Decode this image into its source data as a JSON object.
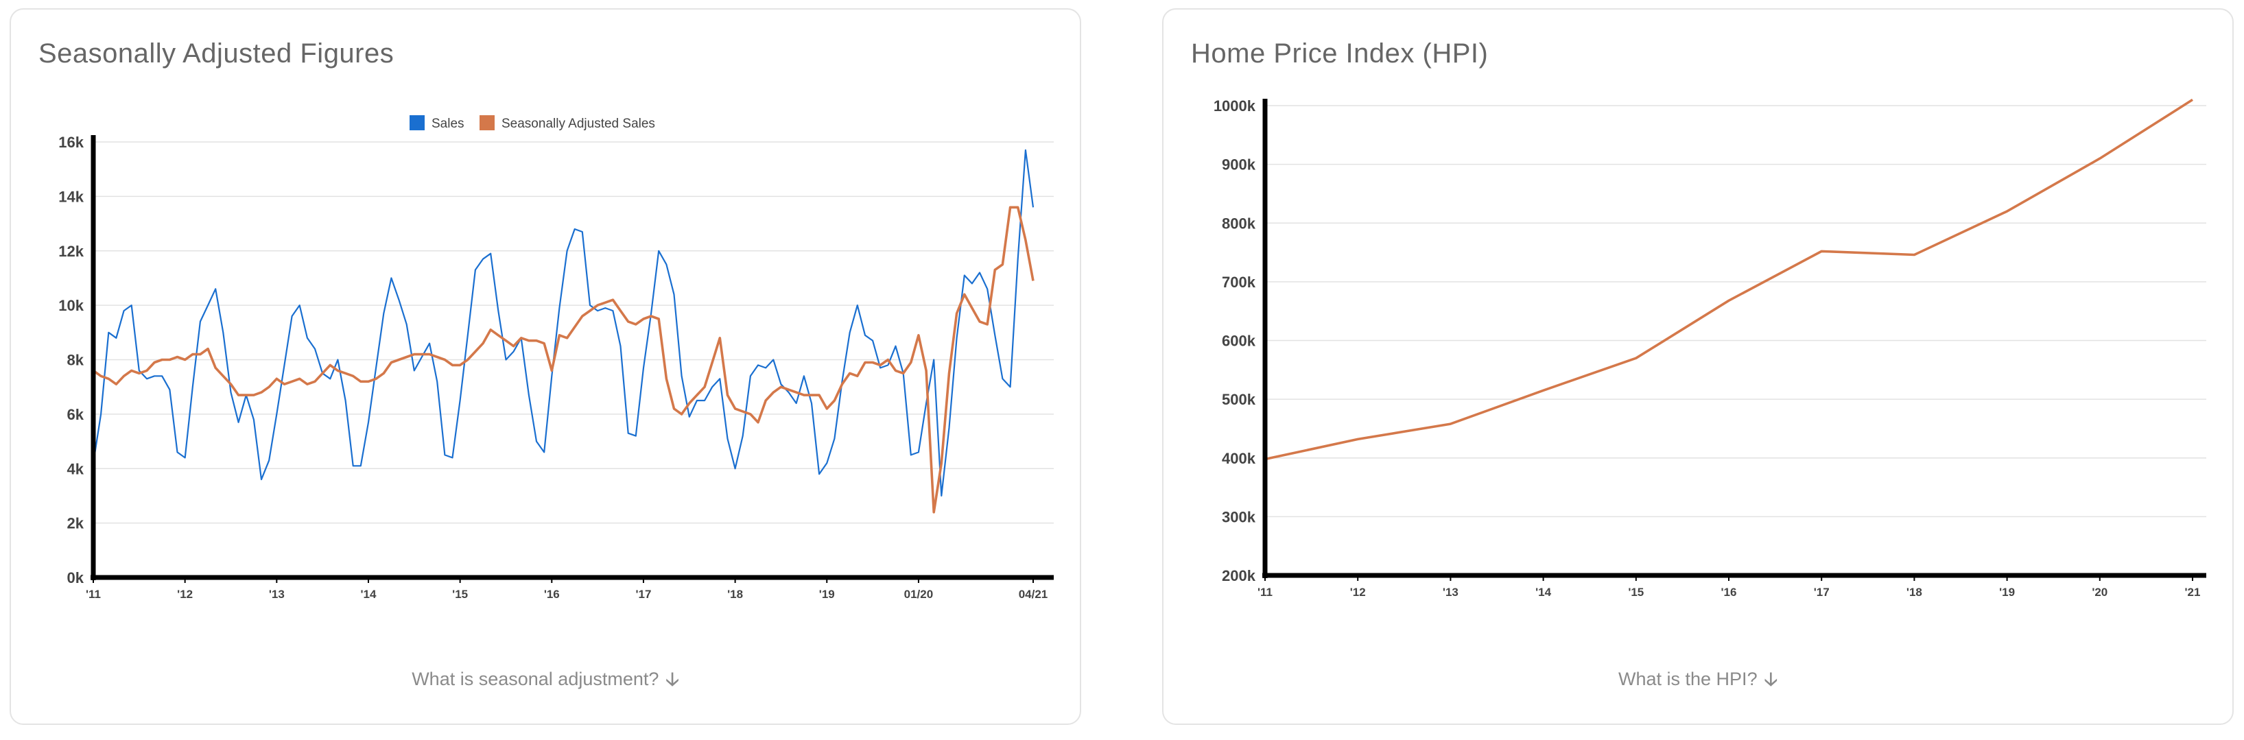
{
  "panels": {
    "left": {
      "title": "Seasonally Adjusted Figures",
      "footer_link": "What is seasonal adjustment?"
    },
    "right": {
      "title": "Home Price Index (HPI)",
      "footer_link": "What is the HPI?"
    }
  },
  "icons": {
    "footer_arrow": "arrow-down-icon"
  },
  "chart_data": [
    {
      "type": "line",
      "title": "Seasonally Adjusted Figures",
      "xlabel": "",
      "ylabel": "",
      "ylim": [
        0,
        16000
      ],
      "y_ticks": [
        0,
        2000,
        4000,
        6000,
        8000,
        10000,
        12000,
        14000,
        16000
      ],
      "y_tick_labels": [
        "0k",
        "2k",
        "4k",
        "6k",
        "8k",
        "10k",
        "12k",
        "14k",
        "16k"
      ],
      "x_range": [
        "2011-01",
        "2021-04"
      ],
      "x_ticks": [
        {
          "x": "2011-01",
          "label": "'11"
        },
        {
          "x": "2012-01",
          "label": "'12"
        },
        {
          "x": "2013-01",
          "label": "'13"
        },
        {
          "x": "2014-01",
          "label": "'14"
        },
        {
          "x": "2015-01",
          "label": "'15"
        },
        {
          "x": "2016-01",
          "label": "'16"
        },
        {
          "x": "2017-01",
          "label": "'17"
        },
        {
          "x": "2018-01",
          "label": "'18"
        },
        {
          "x": "2019-01",
          "label": "'19"
        },
        {
          "x": "2020-01",
          "label": "01/20"
        },
        {
          "x": "2021-04",
          "label": "04/21"
        }
      ],
      "grid": true,
      "legend": "top-center",
      "x": [
        "2011-01",
        "2011-02",
        "2011-03",
        "2011-04",
        "2011-05",
        "2011-06",
        "2011-07",
        "2011-08",
        "2011-09",
        "2011-10",
        "2011-11",
        "2011-12",
        "2012-01",
        "2012-02",
        "2012-03",
        "2012-04",
        "2012-05",
        "2012-06",
        "2012-07",
        "2012-08",
        "2012-09",
        "2012-10",
        "2012-11",
        "2012-12",
        "2013-01",
        "2013-02",
        "2013-03",
        "2013-04",
        "2013-05",
        "2013-06",
        "2013-07",
        "2013-08",
        "2013-09",
        "2013-10",
        "2013-11",
        "2013-12",
        "2014-01",
        "2014-02",
        "2014-03",
        "2014-04",
        "2014-05",
        "2014-06",
        "2014-07",
        "2014-08",
        "2014-09",
        "2014-10",
        "2014-11",
        "2014-12",
        "2015-01",
        "2015-02",
        "2015-03",
        "2015-04",
        "2015-05",
        "2015-06",
        "2015-07",
        "2015-08",
        "2015-09",
        "2015-10",
        "2015-11",
        "2015-12",
        "2016-01",
        "2016-02",
        "2016-03",
        "2016-04",
        "2016-05",
        "2016-06",
        "2016-07",
        "2016-08",
        "2016-09",
        "2016-10",
        "2016-11",
        "2016-12",
        "2017-01",
        "2017-02",
        "2017-03",
        "2017-04",
        "2017-05",
        "2017-06",
        "2017-07",
        "2017-08",
        "2017-09",
        "2017-10",
        "2017-11",
        "2017-12",
        "2018-01",
        "2018-02",
        "2018-03",
        "2018-04",
        "2018-05",
        "2018-06",
        "2018-07",
        "2018-08",
        "2018-09",
        "2018-10",
        "2018-11",
        "2018-12",
        "2019-01",
        "2019-02",
        "2019-03",
        "2019-04",
        "2019-05",
        "2019-06",
        "2019-07",
        "2019-08",
        "2019-09",
        "2019-10",
        "2019-11",
        "2019-12",
        "2020-01",
        "2020-02",
        "2020-03",
        "2020-04",
        "2020-05",
        "2020-06",
        "2020-07",
        "2020-08",
        "2020-09",
        "2020-10",
        "2020-11",
        "2020-12",
        "2021-01",
        "2021-02",
        "2021-03",
        "2021-04"
      ],
      "series": [
        {
          "name": "Sales",
          "color": "#1a6fd0",
          "values": [
            4200,
            6000,
            9000,
            8800,
            9800,
            10000,
            7600,
            7300,
            7400,
            7400,
            6900,
            4600,
            4400,
            7000,
            9400,
            10000,
            10600,
            9000,
            6800,
            5700,
            6700,
            5800,
            3600,
            4300,
            6000,
            7800,
            9600,
            10000,
            8800,
            8400,
            7500,
            7300,
            8000,
            6500,
            4100,
            4100,
            5700,
            7700,
            9700,
            11000,
            10200,
            9300,
            7600,
            8100,
            8600,
            7200,
            4500,
            4400,
            6500,
            8900,
            11300,
            11700,
            11900,
            9800,
            8000,
            8300,
            8800,
            6700,
            5000,
            4600,
            7400,
            9900,
            12000,
            12800,
            12700,
            10000,
            9800,
            9900,
            9800,
            8500,
            5300,
            5200,
            7700,
            9700,
            12000,
            11500,
            10400,
            7400,
            5900,
            6500,
            6500,
            7000,
            7300,
            5100,
            4000,
            5200,
            7400,
            7800,
            7700,
            8000,
            7100,
            6800,
            6400,
            7400,
            6400,
            3800,
            4200,
            5100,
            7200,
            9000,
            10000,
            8900,
            8700,
            7700,
            7800,
            8500,
            7500,
            4500,
            4600,
            6400,
            8000,
            3000,
            5500,
            8800,
            11100,
            10800,
            11200,
            10600,
            8900,
            7300,
            7000,
            11700,
            15700,
            13600
          ]
        },
        {
          "name": "Seasonally Adjusted Sales",
          "color": "#d4784a",
          "values": [
            7600,
            7400,
            7300,
            7100,
            7400,
            7600,
            7500,
            7600,
            7900,
            8000,
            8000,
            8100,
            8000,
            8200,
            8200,
            8400,
            7700,
            7400,
            7100,
            6700,
            6700,
            6700,
            6800,
            7000,
            7300,
            7100,
            7200,
            7300,
            7100,
            7200,
            7500,
            7800,
            7600,
            7500,
            7400,
            7200,
            7200,
            7300,
            7500,
            7900,
            8000,
            8100,
            8200,
            8200,
            8200,
            8100,
            8000,
            7800,
            7800,
            8000,
            8300,
            8600,
            9100,
            8900,
            8700,
            8500,
            8800,
            8700,
            8700,
            8600,
            7600,
            8900,
            8800,
            9200,
            9600,
            9800,
            10000,
            10100,
            10200,
            9800,
            9400,
            9300,
            9500,
            9600,
            9500,
            7300,
            6200,
            6000,
            6400,
            6700,
            7000,
            7900,
            8800,
            6700,
            6200,
            6100,
            6000,
            5700,
            6500,
            6800,
            7000,
            6900,
            6800,
            6700,
            6700,
            6700,
            6200,
            6500,
            7100,
            7500,
            7400,
            7900,
            7900,
            7800,
            8000,
            7600,
            7500,
            7900,
            8900,
            7600,
            2400,
            4200,
            7500,
            9700,
            10400,
            9900,
            9400,
            9300,
            11300,
            11500,
            13600,
            13600,
            12400,
            10900
          ]
        }
      ]
    },
    {
      "type": "line",
      "title": "Home Price Index (HPI)",
      "xlabel": "",
      "ylabel": "",
      "ylim": [
        200000,
        1000000
      ],
      "y_ticks": [
        200000,
        300000,
        400000,
        500000,
        600000,
        700000,
        800000,
        900000,
        1000000
      ],
      "y_tick_labels": [
        "200k",
        "300k",
        "400k",
        "500k",
        "600k",
        "700k",
        "800k",
        "900k",
        "1000k"
      ],
      "x_ticks": [
        {
          "x": 2011,
          "label": "'11"
        },
        {
          "x": 2012,
          "label": "'12"
        },
        {
          "x": 2013,
          "label": "'13"
        },
        {
          "x": 2014,
          "label": "'14"
        },
        {
          "x": 2015,
          "label": "'15"
        },
        {
          "x": 2016,
          "label": "'16"
        },
        {
          "x": 2017,
          "label": "'17"
        },
        {
          "x": 2018,
          "label": "'18"
        },
        {
          "x": 2019,
          "label": "'19"
        },
        {
          "x": 2020,
          "label": "'20"
        },
        {
          "x": 2021,
          "label": "'21"
        }
      ],
      "grid": true,
      "legend": "none",
      "x": [
        2011,
        2012,
        2013,
        2014,
        2015,
        2016,
        2017,
        2018,
        2019,
        2020,
        2021
      ],
      "series": [
        {
          "color": "#d4784a",
          "values": [
            398000,
            432000,
            458000,
            515000,
            570000,
            668000,
            752000,
            746000,
            820000,
            910000,
            1010000
          ]
        }
      ]
    }
  ]
}
